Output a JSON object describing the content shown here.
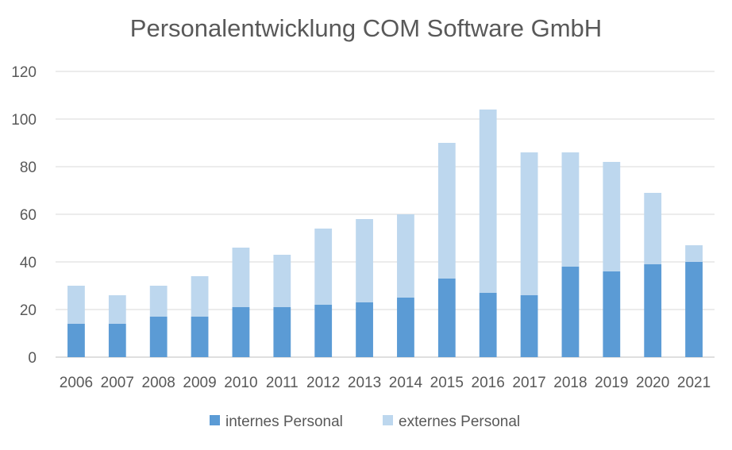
{
  "chart_data": {
    "type": "bar",
    "stacked": true,
    "title": "Personalentwicklung COM Software GmbH",
    "categories": [
      "2006",
      "2007",
      "2008",
      "2009",
      "2010",
      "2011",
      "2012",
      "2013",
      "2014",
      "2015",
      "2016",
      "2017",
      "2018",
      "2019",
      "2020",
      "2021"
    ],
    "series": [
      {
        "name": "internes Personal",
        "color": "#5b9bd5",
        "values": [
          14,
          14,
          17,
          17,
          21,
          21,
          22,
          23,
          25,
          33,
          27,
          26,
          38,
          36,
          39,
          40
        ]
      },
      {
        "name": "externes Personal",
        "color": "#bdd7ee",
        "values": [
          16,
          12,
          13,
          17,
          25,
          22,
          32,
          35,
          35,
          57,
          77,
          60,
          48,
          46,
          30,
          7
        ]
      }
    ],
    "ylim": [
      0,
      120
    ],
    "yticks": [
      0,
      20,
      40,
      60,
      80,
      100,
      120
    ],
    "grid": true,
    "legend_position": "bottom"
  }
}
